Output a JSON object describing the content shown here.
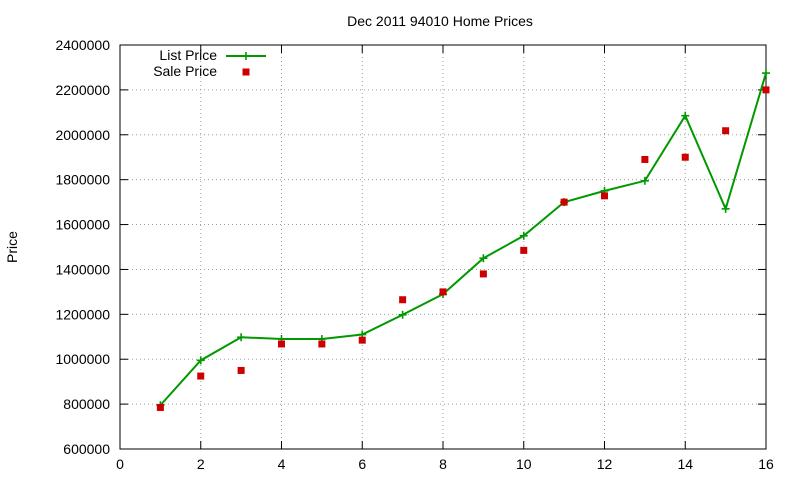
{
  "chart_data": {
    "type": "line",
    "title": "Dec 2011 94010 Home Prices",
    "xlabel": "",
    "ylabel": "Price",
    "xlim": [
      0,
      16
    ],
    "ylim": [
      600000,
      2400000
    ],
    "x_ticks": [
      "0",
      "2",
      "4",
      "6",
      "8",
      "10",
      "12",
      "14",
      "16"
    ],
    "y_ticks": [
      "600000",
      "800000",
      "1000000",
      "1200000",
      "1400000",
      "1600000",
      "1800000",
      "2000000",
      "2200000",
      "2400000"
    ],
    "grid": true,
    "legend_position": "top-left",
    "series": [
      {
        "name": "List Price",
        "style": "linespoints",
        "marker": "plus",
        "color": "#009900",
        "x": [
          1,
          2,
          3,
          4,
          5,
          6,
          7,
          8,
          9,
          10,
          11,
          12,
          13,
          14,
          15,
          16
        ],
        "y": [
          795000,
          995000,
          1098000,
          1090000,
          1090000,
          1110000,
          1198000,
          1290000,
          1450000,
          1550000,
          1700000,
          1750000,
          1795000,
          2085000,
          1670000,
          2275000
        ]
      },
      {
        "name": "Sale Price",
        "style": "points",
        "marker": "square",
        "color": "#cc0000",
        "x": [
          1,
          2,
          3,
          4,
          5,
          6,
          7,
          8,
          9,
          10,
          11,
          12,
          13,
          14,
          15,
          16
        ],
        "y": [
          785000,
          925000,
          950000,
          1068000,
          1068000,
          1085000,
          1265000,
          1300000,
          1380000,
          1485000,
          1700000,
          1728000,
          1890000,
          1900000,
          2018000,
          2200000
        ]
      }
    ]
  }
}
